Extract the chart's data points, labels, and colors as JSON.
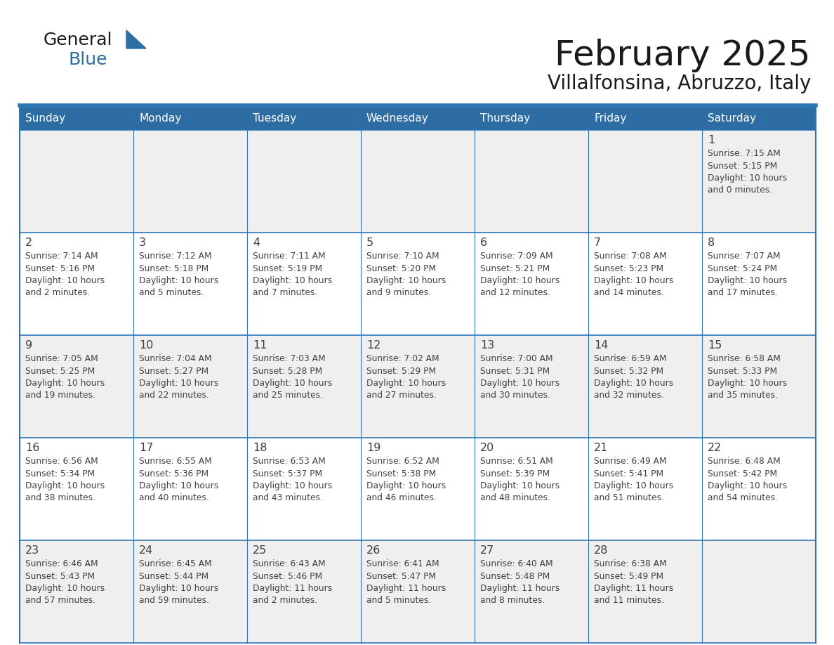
{
  "title": "February 2025",
  "subtitle": "Villalfonsina, Abruzzo, Italy",
  "header_color": "#2E6DA4",
  "header_text_color": "#FFFFFF",
  "cell_bg_even": "#EFEFEF",
  "cell_bg_odd": "#FFFFFF",
  "border_color": "#2E75B6",
  "day_names": [
    "Sunday",
    "Monday",
    "Tuesday",
    "Wednesday",
    "Thursday",
    "Friday",
    "Saturday"
  ],
  "title_color": "#1a1a1a",
  "subtitle_color": "#1a1a1a",
  "day_num_color": "#404040",
  "info_color": "#404040",
  "logo_general_color": "#1a1a1a",
  "logo_blue_color": "#2E6DA4",
  "top_line_color": "#2E75B6",
  "calendar_data": [
    [
      null,
      null,
      null,
      null,
      null,
      null,
      {
        "day": 1,
        "sunrise": "7:15 AM",
        "sunset": "5:15 PM",
        "daylight_hours": 10,
        "daylight_minutes": 0
      }
    ],
    [
      {
        "day": 2,
        "sunrise": "7:14 AM",
        "sunset": "5:16 PM",
        "daylight_hours": 10,
        "daylight_minutes": 2
      },
      {
        "day": 3,
        "sunrise": "7:12 AM",
        "sunset": "5:18 PM",
        "daylight_hours": 10,
        "daylight_minutes": 5
      },
      {
        "day": 4,
        "sunrise": "7:11 AM",
        "sunset": "5:19 PM",
        "daylight_hours": 10,
        "daylight_minutes": 7
      },
      {
        "day": 5,
        "sunrise": "7:10 AM",
        "sunset": "5:20 PM",
        "daylight_hours": 10,
        "daylight_minutes": 9
      },
      {
        "day": 6,
        "sunrise": "7:09 AM",
        "sunset": "5:21 PM",
        "daylight_hours": 10,
        "daylight_minutes": 12
      },
      {
        "day": 7,
        "sunrise": "7:08 AM",
        "sunset": "5:23 PM",
        "daylight_hours": 10,
        "daylight_minutes": 14
      },
      {
        "day": 8,
        "sunrise": "7:07 AM",
        "sunset": "5:24 PM",
        "daylight_hours": 10,
        "daylight_minutes": 17
      }
    ],
    [
      {
        "day": 9,
        "sunrise": "7:05 AM",
        "sunset": "5:25 PM",
        "daylight_hours": 10,
        "daylight_minutes": 19
      },
      {
        "day": 10,
        "sunrise": "7:04 AM",
        "sunset": "5:27 PM",
        "daylight_hours": 10,
        "daylight_minutes": 22
      },
      {
        "day": 11,
        "sunrise": "7:03 AM",
        "sunset": "5:28 PM",
        "daylight_hours": 10,
        "daylight_minutes": 25
      },
      {
        "day": 12,
        "sunrise": "7:02 AM",
        "sunset": "5:29 PM",
        "daylight_hours": 10,
        "daylight_minutes": 27
      },
      {
        "day": 13,
        "sunrise": "7:00 AM",
        "sunset": "5:31 PM",
        "daylight_hours": 10,
        "daylight_minutes": 30
      },
      {
        "day": 14,
        "sunrise": "6:59 AM",
        "sunset": "5:32 PM",
        "daylight_hours": 10,
        "daylight_minutes": 32
      },
      {
        "day": 15,
        "sunrise": "6:58 AM",
        "sunset": "5:33 PM",
        "daylight_hours": 10,
        "daylight_minutes": 35
      }
    ],
    [
      {
        "day": 16,
        "sunrise": "6:56 AM",
        "sunset": "5:34 PM",
        "daylight_hours": 10,
        "daylight_minutes": 38
      },
      {
        "day": 17,
        "sunrise": "6:55 AM",
        "sunset": "5:36 PM",
        "daylight_hours": 10,
        "daylight_minutes": 40
      },
      {
        "day": 18,
        "sunrise": "6:53 AM",
        "sunset": "5:37 PM",
        "daylight_hours": 10,
        "daylight_minutes": 43
      },
      {
        "day": 19,
        "sunrise": "6:52 AM",
        "sunset": "5:38 PM",
        "daylight_hours": 10,
        "daylight_minutes": 46
      },
      {
        "day": 20,
        "sunrise": "6:51 AM",
        "sunset": "5:39 PM",
        "daylight_hours": 10,
        "daylight_minutes": 48
      },
      {
        "day": 21,
        "sunrise": "6:49 AM",
        "sunset": "5:41 PM",
        "daylight_hours": 10,
        "daylight_minutes": 51
      },
      {
        "day": 22,
        "sunrise": "6:48 AM",
        "sunset": "5:42 PM",
        "daylight_hours": 10,
        "daylight_minutes": 54
      }
    ],
    [
      {
        "day": 23,
        "sunrise": "6:46 AM",
        "sunset": "5:43 PM",
        "daylight_hours": 10,
        "daylight_minutes": 57
      },
      {
        "day": 24,
        "sunrise": "6:45 AM",
        "sunset": "5:44 PM",
        "daylight_hours": 10,
        "daylight_minutes": 59
      },
      {
        "day": 25,
        "sunrise": "6:43 AM",
        "sunset": "5:46 PM",
        "daylight_hours": 11,
        "daylight_minutes": 2
      },
      {
        "day": 26,
        "sunrise": "6:41 AM",
        "sunset": "5:47 PM",
        "daylight_hours": 11,
        "daylight_minutes": 5
      },
      {
        "day": 27,
        "sunrise": "6:40 AM",
        "sunset": "5:48 PM",
        "daylight_hours": 11,
        "daylight_minutes": 8
      },
      {
        "day": 28,
        "sunrise": "6:38 AM",
        "sunset": "5:49 PM",
        "daylight_hours": 11,
        "daylight_minutes": 11
      },
      null
    ]
  ]
}
